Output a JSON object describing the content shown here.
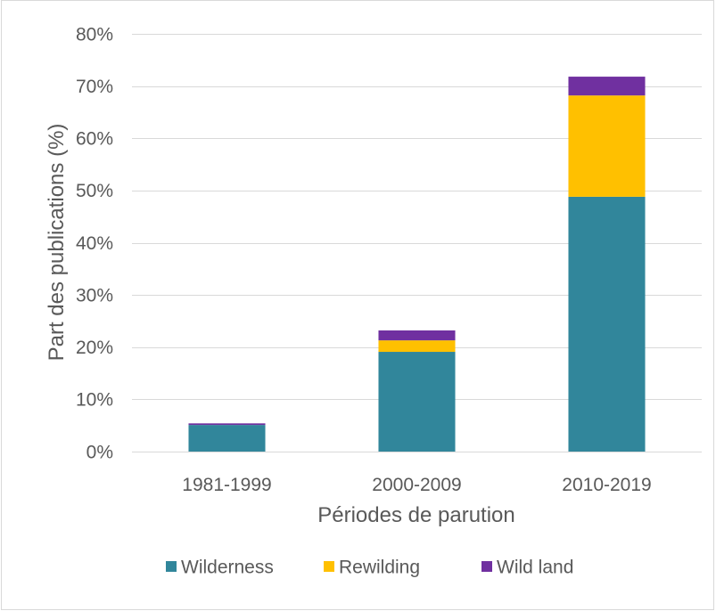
{
  "chart_data": {
    "type": "bar",
    "stacked": true,
    "orientation": "vertical",
    "categories": [
      "1981-1999",
      "2000-2009",
      "2010-2019"
    ],
    "series": [
      {
        "name": "Wilderness",
        "color": "#31869B",
        "values": [
          5.1,
          19.1,
          48.8
        ]
      },
      {
        "name": "Rewilding",
        "color": "#FFC000",
        "values": [
          0.0,
          2.2,
          19.4
        ]
      },
      {
        "name": "Wild land",
        "color": "#7030A0",
        "values": [
          0.3,
          1.9,
          3.6
        ]
      }
    ],
    "xlabel": "Périodes de parution",
    "ylabel": "Part des publications (%)",
    "ylim": [
      0,
      80
    ],
    "yticks": [
      {
        "value": 0,
        "label": "0%"
      },
      {
        "value": 10,
        "label": "10%"
      },
      {
        "value": 20,
        "label": "20%"
      },
      {
        "value": 30,
        "label": "30%"
      },
      {
        "value": 40,
        "label": "40%"
      },
      {
        "value": 50,
        "label": "50%"
      },
      {
        "value": 60,
        "label": "60%"
      },
      {
        "value": 70,
        "label": "70%"
      },
      {
        "value": 80,
        "label": "80%"
      }
    ],
    "grid": true,
    "legend": "bottom"
  }
}
